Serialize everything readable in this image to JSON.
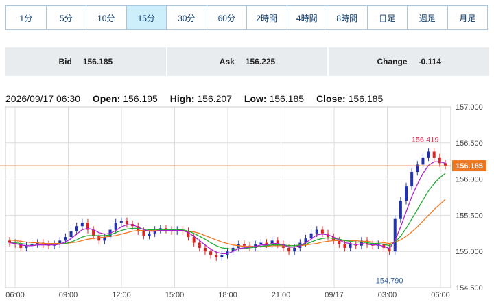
{
  "timeframe_tabs": [
    {
      "label": "1分",
      "active": false
    },
    {
      "label": "5分",
      "active": false
    },
    {
      "label": "10分",
      "active": false
    },
    {
      "label": "15分",
      "active": true
    },
    {
      "label": "30分",
      "active": false
    },
    {
      "label": "60分",
      "active": false
    },
    {
      "label": "2時間",
      "active": false
    },
    {
      "label": "4時間",
      "active": false
    },
    {
      "label": "8時間",
      "active": false
    },
    {
      "label": "日足",
      "active": false
    },
    {
      "label": "週足",
      "active": false
    },
    {
      "label": "月足",
      "active": false
    }
  ],
  "quotes": {
    "bid_label": "Bid",
    "bid_value": "156.185",
    "ask_label": "Ask",
    "ask_value": "156.225",
    "change_label": "Change",
    "change_value": "-0.114"
  },
  "ohlc": {
    "datetime": "2026/09/17 06:30",
    "open_label": "Open:",
    "open": "156.195",
    "high_label": "High:",
    "high": "156.207",
    "low_label": "Low:",
    "low": "156.185",
    "close_label": "Close:",
    "close": "156.185"
  },
  "colors": {
    "up": "#2233aa",
    "down": "#dd2222",
    "ma_short": "#aa22cc",
    "ma_mid": "#22aa33",
    "ma_long": "#ee7722",
    "price_line": "#ee7722",
    "grid": "#dddddd"
  },
  "chart_data": {
    "type": "candlestick",
    "ylim": [
      154.5,
      157.0
    ],
    "y_ticks": [
      "157.000",
      "156.500",
      "156.000",
      "155.500",
      "155.000",
      "154.500"
    ],
    "x_ticks": [
      "06:00",
      "09:00",
      "12:00",
      "15:00",
      "18:00",
      "21:00",
      "09/17",
      "03:00",
      "06:00"
    ],
    "current_price": "156.185",
    "high_marker": "156.419",
    "low_marker": "154.790",
    "close_points": [
      155.12,
      155.1,
      155.05,
      155.08,
      155.1,
      155.12,
      155.1,
      155.08,
      155.1,
      155.15,
      155.2,
      155.28,
      155.35,
      155.4,
      155.3,
      155.22,
      155.15,
      155.2,
      155.3,
      155.4,
      155.42,
      155.38,
      155.35,
      155.28,
      155.22,
      155.25,
      155.3,
      155.32,
      155.3,
      155.28,
      155.3,
      155.28,
      155.2,
      155.12,
      155.05,
      155.0,
      154.95,
      154.92,
      154.95,
      155.0,
      155.05,
      155.1,
      155.08,
      155.05,
      155.1,
      155.12,
      155.1,
      155.15,
      155.1,
      155.05,
      155.0,
      155.05,
      155.12,
      155.18,
      155.25,
      155.3,
      155.25,
      155.2,
      155.15,
      155.1,
      155.05,
      155.1,
      155.08,
      155.15,
      155.1,
      155.08,
      155.1,
      155.05,
      155.0,
      155.45,
      155.7,
      155.9,
      156.1,
      156.2,
      156.3,
      156.38,
      156.3,
      156.22,
      156.185
    ],
    "ma_short": [
      155.12,
      155.11,
      155.09,
      155.08,
      155.08,
      155.09,
      155.09,
      155.09,
      155.09,
      155.1,
      155.13,
      155.18,
      155.24,
      155.3,
      155.32,
      155.3,
      155.26,
      155.24,
      155.25,
      155.29,
      155.34,
      155.37,
      155.37,
      155.34,
      155.3,
      155.28,
      155.28,
      155.29,
      155.29,
      155.29,
      155.29,
      155.29,
      155.26,
      155.21,
      155.15,
      155.09,
      155.03,
      154.99,
      154.97,
      154.97,
      155.0,
      155.04,
      155.05,
      155.06,
      155.07,
      155.09,
      155.09,
      155.11,
      155.11,
      155.09,
      155.06,
      155.06,
      155.08,
      155.12,
      155.17,
      155.23,
      155.24,
      155.23,
      155.2,
      155.16,
      155.12,
      155.11,
      155.09,
      155.11,
      155.1,
      155.09,
      155.09,
      155.07,
      155.04,
      155.15,
      155.34,
      155.55,
      155.76,
      155.93,
      156.08,
      156.19,
      156.24,
      156.24,
      156.22
    ],
    "ma_mid": [
      155.13,
      155.12,
      155.11,
      155.1,
      155.1,
      155.1,
      155.1,
      155.1,
      155.1,
      155.1,
      155.11,
      155.13,
      155.16,
      155.2,
      155.22,
      155.22,
      155.22,
      155.22,
      155.23,
      155.26,
      155.29,
      155.31,
      155.32,
      155.32,
      155.31,
      155.3,
      155.3,
      155.3,
      155.3,
      155.3,
      155.3,
      155.3,
      155.28,
      155.25,
      155.21,
      155.17,
      155.12,
      155.08,
      155.05,
      155.04,
      155.03,
      155.04,
      155.04,
      155.05,
      155.06,
      155.07,
      155.08,
      155.09,
      155.09,
      155.09,
      155.08,
      155.08,
      155.09,
      155.1,
      155.13,
      155.16,
      155.18,
      155.19,
      155.18,
      155.17,
      155.15,
      155.14,
      155.13,
      155.13,
      155.12,
      155.11,
      155.11,
      155.1,
      155.08,
      155.13,
      155.21,
      155.32,
      155.45,
      155.58,
      155.71,
      155.84,
      155.94,
      156.02,
      156.08
    ],
    "ma_long": [
      155.16,
      155.15,
      155.14,
      155.13,
      155.12,
      155.12,
      155.11,
      155.11,
      155.11,
      155.11,
      155.11,
      155.12,
      155.13,
      155.15,
      155.17,
      155.18,
      155.19,
      155.2,
      155.21,
      155.22,
      155.24,
      155.26,
      155.28,
      155.29,
      155.29,
      155.29,
      155.29,
      155.29,
      155.29,
      155.29,
      155.29,
      155.29,
      155.28,
      155.27,
      155.25,
      155.22,
      155.19,
      155.16,
      155.13,
      155.11,
      155.09,
      155.08,
      155.07,
      155.07,
      155.07,
      155.07,
      155.07,
      155.08,
      155.08,
      155.08,
      155.08,
      155.08,
      155.08,
      155.09,
      155.1,
      155.11,
      155.13,
      155.14,
      155.15,
      155.15,
      155.15,
      155.15,
      155.15,
      155.14,
      155.14,
      155.13,
      155.13,
      155.12,
      155.11,
      155.13,
      155.16,
      155.21,
      155.27,
      155.34,
      155.42,
      155.5,
      155.58,
      155.65,
      155.72
    ]
  }
}
